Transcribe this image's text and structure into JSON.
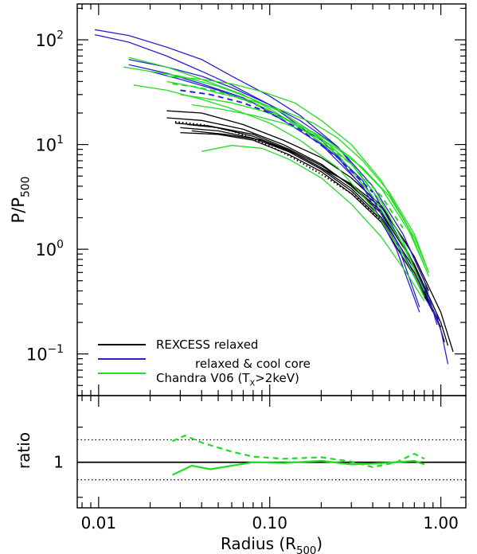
{
  "chart_data": [
    {
      "type": "line",
      "panel": "main",
      "x_scale": "log",
      "y_scale": "log",
      "xlim": [
        0.0075,
        1.4
      ],
      "ylim": [
        0.04,
        220
      ],
      "ylabel": {
        "base": "P/P",
        "sub": "500"
      },
      "y_ticks": [
        {
          "value": 0.1,
          "base": "10",
          "exp": "−1"
        },
        {
          "value": 1,
          "base": "10",
          "exp": "0"
        },
        {
          "value": 10,
          "base": "10",
          "exp": "1"
        },
        {
          "value": 100,
          "base": "10",
          "exp": "2"
        }
      ],
      "legend": {
        "placement": "bottom-left",
        "entries": [
          {
            "color": "#000000",
            "text": "REXCESS relaxed"
          },
          {
            "color": "#2a22cc",
            "text": "relaxed & cool core"
          },
          {
            "color": "#22dd22",
            "main": "Chandra V06 (T",
            "sub": "X",
            "rest": ">2keV)"
          }
        ]
      },
      "series": [
        {
          "group": "black",
          "color": "#000000",
          "x": [
            0.025,
            0.04,
            0.07,
            0.12,
            0.2,
            0.3,
            0.45,
            0.7,
            1.0,
            1.18
          ],
          "y": [
            21,
            20,
            15.5,
            11,
            7.5,
            4.8,
            2.6,
            0.85,
            0.25,
            0.105
          ]
        },
        {
          "group": "black",
          "color": "#000000",
          "x": [
            0.025,
            0.04,
            0.07,
            0.12,
            0.2,
            0.3,
            0.45,
            0.7,
            1.0,
            1.1
          ],
          "y": [
            18,
            17,
            14,
            10,
            6.5,
            4.0,
            2.2,
            0.72,
            0.2,
            0.12
          ]
        },
        {
          "group": "black",
          "color": "#000000",
          "x": [
            0.028,
            0.045,
            0.08,
            0.13,
            0.2,
            0.3,
            0.45,
            0.7,
            0.95,
            1.05
          ],
          "y": [
            16,
            15,
            12,
            8.8,
            6.0,
            3.8,
            2.0,
            0.65,
            0.22,
            0.13
          ]
        },
        {
          "group": "black",
          "color": "#000000",
          "x": [
            0.03,
            0.05,
            0.08,
            0.13,
            0.2,
            0.3,
            0.45,
            0.7,
            1.0
          ],
          "y": [
            14.5,
            13.5,
            11.5,
            8.5,
            5.8,
            3.6,
            1.9,
            0.6,
            0.18
          ]
        },
        {
          "group": "black",
          "color": "#000000",
          "x": [
            0.03,
            0.05,
            0.08,
            0.13,
            0.2,
            0.3,
            0.45,
            0.7,
            0.9
          ],
          "y": [
            13,
            12.5,
            11,
            8.0,
            5.5,
            3.4,
            1.8,
            0.55,
            0.25
          ]
        },
        {
          "group": "black",
          "color": "#000000",
          "x": [
            0.033,
            0.05,
            0.08,
            0.13,
            0.2,
            0.3,
            0.45,
            0.65,
            0.85
          ],
          "y": [
            15.5,
            14.5,
            12.5,
            9.0,
            6.3,
            4.1,
            2.3,
            0.9,
            0.35
          ]
        },
        {
          "group": "black",
          "color": "#000000",
          "x": [
            0.035,
            0.055,
            0.09,
            0.14,
            0.2,
            0.3,
            0.45,
            0.65,
            0.85
          ],
          "y": [
            13.5,
            12.5,
            11.0,
            8.2,
            6.0,
            4.2,
            2.5,
            1.05,
            0.4
          ]
        },
        {
          "group": "blue",
          "color": "#2a22cc",
          "x": [
            0.0095,
            0.015,
            0.025,
            0.04,
            0.06,
            0.1,
            0.15,
            0.25,
            0.4,
            0.6,
            0.8,
            1.0,
            1.1
          ],
          "y": [
            125,
            110,
            85,
            65,
            45,
            29,
            19,
            9.5,
            3.6,
            1.1,
            0.42,
            0.17,
            0.08
          ]
        },
        {
          "group": "blue",
          "color": "#2a22cc",
          "x": [
            0.0095,
            0.015,
            0.025,
            0.04,
            0.06,
            0.1,
            0.15,
            0.25,
            0.4,
            0.6,
            0.8,
            1.0
          ],
          "y": [
            112,
            95,
            70,
            50,
            37,
            24,
            15,
            7.5,
            3.0,
            0.95,
            0.35,
            0.2
          ]
        },
        {
          "group": "blue",
          "color": "#2a22cc",
          "x": [
            0.015,
            0.025,
            0.04,
            0.06,
            0.1,
            0.15,
            0.25,
            0.4,
            0.6,
            0.8,
            0.95
          ],
          "y": [
            65,
            55,
            45,
            35,
            24,
            17,
            9.5,
            4.0,
            1.4,
            0.5,
            0.19
          ]
        },
        {
          "group": "blue",
          "color": "#2a22cc",
          "x": [
            0.015,
            0.025,
            0.04,
            0.07,
            0.12,
            0.2,
            0.35,
            0.55,
            0.75
          ],
          "y": [
            58,
            48,
            38,
            28,
            18,
            11,
            4.5,
            1.2,
            0.28
          ]
        },
        {
          "group": "blue",
          "color": "#2a22cc",
          "x": [
            0.02,
            0.03,
            0.05,
            0.08,
            0.12,
            0.2,
            0.35,
            0.55,
            0.75
          ],
          "y": [
            50,
            42,
            33,
            25,
            17,
            10,
            4.0,
            1.0,
            0.25
          ]
        },
        {
          "group": "green",
          "color": "#22dd22",
          "x": [
            0.015,
            0.025,
            0.04,
            0.07,
            0.1,
            0.15,
            0.25,
            0.4,
            0.6,
            0.8
          ],
          "y": [
            68,
            55,
            42,
            30,
            22,
            14.5,
            8.0,
            3.2,
            1.1,
            0.4
          ]
        },
        {
          "group": "green",
          "color": "#22dd22",
          "x": [
            0.014,
            0.02,
            0.03,
            0.05,
            0.08,
            0.12,
            0.2,
            0.3,
            0.45,
            0.6,
            0.75
          ],
          "y": [
            55,
            50,
            45,
            36,
            27,
            20,
            11.5,
            6.5,
            2.8,
            1.2,
            0.5
          ]
        },
        {
          "group": "green",
          "color": "#22dd22",
          "x": [
            0.016,
            0.025,
            0.04,
            0.06,
            0.1,
            0.15,
            0.25,
            0.4,
            0.6,
            0.8
          ],
          "y": [
            37,
            33,
            27,
            22,
            16,
            11,
            6.0,
            2.5,
            0.9,
            0.35
          ]
        },
        {
          "group": "green",
          "color": "#22dd22",
          "x": [
            0.025,
            0.04,
            0.06,
            0.09,
            0.14,
            0.2,
            0.3,
            0.45,
            0.65,
            0.85
          ],
          "y": [
            45,
            42,
            38,
            32,
            25,
            17,
            10,
            4.5,
            1.6,
            0.55
          ]
        },
        {
          "group": "green",
          "color": "#22dd22",
          "x": [
            0.025,
            0.035,
            0.05,
            0.08,
            0.12,
            0.18,
            0.25,
            0.35,
            0.5,
            0.7,
            0.85
          ],
          "y": [
            40,
            36,
            31,
            26,
            21,
            16,
            11.5,
            7.0,
            3.5,
            1.4,
            0.6
          ]
        },
        {
          "group": "green",
          "color": "#22dd22",
          "x": [
            0.03,
            0.04,
            0.06,
            0.09,
            0.13,
            0.2,
            0.3,
            0.45,
            0.65,
            0.8
          ],
          "y": [
            30,
            28,
            25,
            21,
            17,
            12,
            7.5,
            3.8,
            1.5,
            0.7
          ]
        },
        {
          "group": "green",
          "color": "#22dd22",
          "x": [
            0.035,
            0.05,
            0.08,
            0.12,
            0.18,
            0.25,
            0.35,
            0.5,
            0.7,
            0.85
          ],
          "y": [
            24,
            22,
            19,
            16,
            12.5,
            9.0,
            6.0,
            3.2,
            1.3,
            0.6
          ]
        },
        {
          "group": "green",
          "color": "#22dd22",
          "x": [
            0.04,
            0.06,
            0.09,
            0.13,
            0.2,
            0.3,
            0.45,
            0.65,
            0.8
          ],
          "y": [
            8.6,
            9.8,
            9.2,
            7.2,
            4.8,
            2.7,
            1.3,
            0.55,
            0.32
          ]
        },
        {
          "group": "black-dotted",
          "color": "#000000",
          "dash": "dotted",
          "x": [
            0.028,
            0.04,
            0.06,
            0.09,
            0.13,
            0.2,
            0.3,
            0.45
          ],
          "y": [
            16.5,
            15.5,
            13.5,
            10.5,
            7.8,
            5.2,
            3.4,
            1.9
          ]
        },
        {
          "group": "green-dashed",
          "color": "#22dd22",
          "dash": "dashed",
          "x": [
            0.027,
            0.035,
            0.05,
            0.07,
            0.1,
            0.15,
            0.2,
            0.3,
            0.45,
            0.6
          ],
          "y": [
            38,
            36,
            32,
            27,
            21,
            15,
            11,
            6.5,
            3.2,
            1.6
          ]
        },
        {
          "group": "blue-dashed",
          "color": "#2a22cc",
          "dash": "dashed",
          "x": [
            0.03,
            0.045,
            0.07,
            0.1,
            0.15,
            0.25,
            0.4
          ],
          "y": [
            33,
            30,
            25,
            20,
            14,
            7.5,
            3.5
          ]
        }
      ]
    },
    {
      "type": "line",
      "panel": "ratio",
      "x_scale": "log",
      "xlim": [
        0.0075,
        1.4
      ],
      "ylim": [
        0.35,
        1.95
      ],
      "ylabel": "ratio",
      "xlabel": {
        "base": "Radius (R",
        "sub": "500",
        "close": ")"
      },
      "x_ticks": [
        {
          "value": 0.01,
          "label": "0.01"
        },
        {
          "value": 0.1,
          "label": "0.10"
        },
        {
          "value": 1,
          "label": "1.00"
        }
      ],
      "y_ticks": [
        {
          "value": 1,
          "label": "1"
        }
      ],
      "reference_lines": [
        {
          "y": 1.0,
          "style": "solid"
        },
        {
          "y": 1.32,
          "style": "dotted"
        },
        {
          "y": 0.75,
          "style": "dotted"
        }
      ],
      "series": [
        {
          "color": "#22dd22",
          "dash": "solid",
          "x": [
            0.027,
            0.035,
            0.045,
            0.06,
            0.08,
            0.12,
            0.2,
            0.3,
            0.4,
            0.55,
            0.7,
            0.8
          ],
          "y": [
            0.82,
            0.95,
            0.9,
            0.95,
            1.0,
            0.99,
            1.02,
            0.97,
            0.98,
            1.0,
            1.02,
            0.97
          ]
        },
        {
          "color": "#22dd22",
          "dash": "dashed",
          "x": [
            0.027,
            0.032,
            0.04,
            0.06,
            0.08,
            0.12,
            0.2,
            0.3,
            0.4,
            0.55,
            0.7,
            0.8
          ],
          "y": [
            1.3,
            1.38,
            1.28,
            1.15,
            1.08,
            1.05,
            1.07,
            1.01,
            0.93,
            1.0,
            1.12,
            1.05
          ]
        }
      ]
    }
  ]
}
